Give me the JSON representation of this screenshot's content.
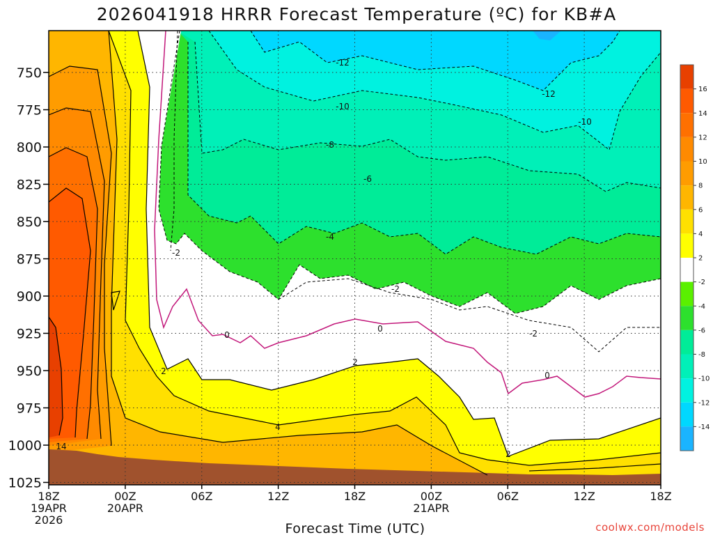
{
  "title": "2026041918 HRRR Forecast Temperature (ºC) for KB#A",
  "credit": "coolwx.com/models",
  "colors": {
    "lt-14": "#1ab4ff",
    "m14_m12": "#00d8ff",
    "m12_m10": "#00f2e0",
    "m10_m8": "#00f0b8",
    "m8_m6": "#00ec98",
    "m6_m4": "#2de02d",
    "m4_m2": "#5af000",
    "m2_2": "#ffffff",
    "2_4": "#ffff00",
    "4_6": "#ffe000",
    "6_8": "#ffb600",
    "8_10": "#ff9c00",
    "10_12": "#ff8a00",
    "12_14": "#ff7000",
    "14_16": "#ff5a00",
    "gt16": "#e84000",
    "ground": "#a0522d",
    "zero_line": "#c2177a"
  },
  "chart_data": {
    "type": "heatmap",
    "title": "2026041918 HRRR Forecast Temperature (ºC) for KB#A",
    "xlabel": "Forecast Time (UTC)",
    "ylabel": "",
    "x_ticks": [
      {
        "hour": 0,
        "l1": "18Z",
        "l2": "19APR",
        "l3": "2026"
      },
      {
        "hour": 6,
        "l1": "00Z",
        "l2": "20APR",
        "l3": ""
      },
      {
        "hour": 12,
        "l1": "06Z",
        "l2": "",
        "l3": ""
      },
      {
        "hour": 18,
        "l1": "12Z",
        "l2": "",
        "l3": ""
      },
      {
        "hour": 24,
        "l1": "18Z",
        "l2": "",
        "l3": ""
      },
      {
        "hour": 30,
        "l1": "00Z",
        "l2": "21APR",
        "l3": ""
      },
      {
        "hour": 36,
        "l1": "06Z",
        "l2": "",
        "l3": ""
      },
      {
        "hour": 42,
        "l1": "12Z",
        "l2": "",
        "l3": ""
      },
      {
        "hour": 48,
        "l1": "18Z",
        "l2": "",
        "l3": ""
      }
    ],
    "y_ticks": [
      750,
      775,
      800,
      825,
      850,
      875,
      900,
      925,
      950,
      975,
      1000,
      1025
    ],
    "ylim": [
      1028,
      728
    ],
    "xlim": [
      0,
      48
    ],
    "colorbar_labels": [
      "16",
      "14",
      "12",
      "10",
      "8",
      "6",
      "4",
      "2",
      "-2",
      "-4",
      "-6",
      "-8",
      "-10",
      "-12",
      "-14"
    ],
    "contour_labels": [
      "-12",
      "-12",
      "-10",
      "-10",
      "-8",
      "-6",
      "-4",
      "-2",
      "-2",
      "-2",
      "0",
      "0",
      "0",
      "2",
      "2",
      "2",
      "4",
      "14"
    ],
    "grid": true
  }
}
